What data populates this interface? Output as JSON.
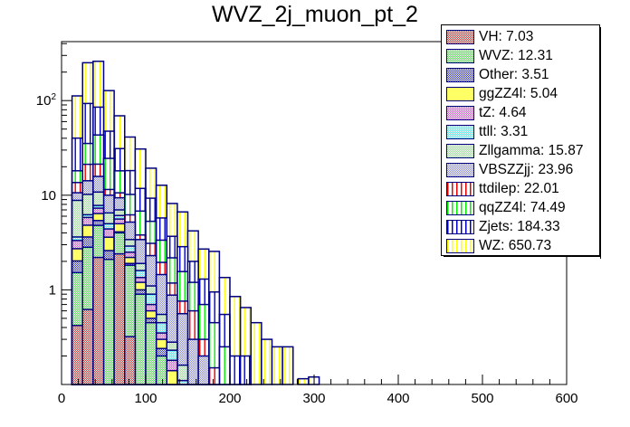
{
  "chart_data": {
    "type": "bar",
    "stacked": true,
    "title": "WVZ_2j_muon_pt_2",
    "xlabel": "",
    "ylabel": "",
    "xlim": [
      0,
      600
    ],
    "ylim": [
      0.1,
      420
    ],
    "yscale": "log",
    "grid": false,
    "legend_position": "top-right",
    "x_ticks": [
      "0",
      "100",
      "200",
      "300",
      "400",
      "500",
      "600"
    ],
    "x_tick_values": [
      0,
      100,
      200,
      300,
      400,
      500,
      600
    ],
    "y_ticks": [
      "1",
      "10",
      "10²"
    ],
    "y_tick_values": [
      1,
      10,
      100
    ],
    "bin_width": 12.5,
    "bin_edges_start": 12.5,
    "stack_order": [
      "VH",
      "WVZ",
      "Other",
      "ggZZ4l",
      "tZ",
      "ttll",
      "Zllgamma",
      "VBSZZjj",
      "ttdilep",
      "qqZZ4l",
      "Zjets",
      "WZ"
    ],
    "series": [
      {
        "name": "VH",
        "label": "VH: 7.03",
        "color": "#cc3333",
        "pattern": "check",
        "values": [
          0.42,
          0.62,
          2.2,
          0.1,
          2.4,
          0.32,
          0,
          0,
          0,
          0,
          0,
          0,
          0,
          0,
          0,
          0,
          0,
          0,
          0,
          0,
          0,
          0,
          0,
          0
        ]
      },
      {
        "name": "WVZ",
        "label": "WVZ: 12.31",
        "color": "#55dd55",
        "pattern": "check",
        "values": [
          1.1,
          2.2,
          2.6,
          2.0,
          1.6,
          1.5,
          0.9,
          0.45,
          0.2,
          0.08,
          0.05,
          0,
          0,
          0,
          0,
          0,
          0,
          0,
          0,
          0,
          0,
          0,
          0,
          0
        ]
      },
      {
        "name": "Other",
        "label": "Other: 3.51",
        "color": "#3333cc",
        "pattern": "check",
        "values": [
          0.5,
          0.8,
          0.6,
          0.5,
          0.1,
          0.08,
          0.1,
          0.05,
          0.04,
          0.02,
          0,
          0,
          0,
          0,
          0,
          0,
          0,
          0,
          0,
          0,
          0,
          0,
          0,
          0
        ]
      },
      {
        "name": "ggZZ4l",
        "label": "ggZZ4l: 5.04",
        "color": "#ffff66",
        "pattern": "solid",
        "values": [
          0.7,
          1.2,
          1.0,
          1.0,
          0.9,
          0.3,
          0.2,
          0.1,
          0.06,
          0.04,
          0,
          0,
          0,
          0,
          0,
          0,
          0,
          0,
          0,
          0,
          0,
          0,
          0,
          0
        ]
      },
      {
        "name": "tZ",
        "label": "tZ: 4.64",
        "color": "#dd55dd",
        "pattern": "check",
        "values": [
          0.6,
          1.0,
          0.9,
          0.8,
          0.6,
          0.3,
          0.15,
          0.1,
          0.05,
          0.04,
          0.03,
          0,
          0,
          0,
          0,
          0,
          0,
          0,
          0,
          0,
          0,
          0,
          0,
          0
        ]
      },
      {
        "name": "ttll",
        "label": "ttll: 3.31",
        "color": "#55eeee",
        "pattern": "check",
        "values": [
          0.3,
          0.4,
          0.5,
          0.6,
          0.5,
          0.4,
          0.25,
          0.2,
          0.1,
          0.05,
          0.03,
          0,
          0,
          0,
          0,
          0,
          0,
          0,
          0,
          0,
          0,
          0,
          0,
          0
        ]
      },
      {
        "name": "Zllgamma",
        "label": "Zllgamma: 15.87",
        "color": "#99dd99",
        "pattern": "check",
        "values": [
          5.2,
          4.0,
          3.0,
          1.5,
          0.9,
          0.5,
          0.3,
          0.2,
          0.1,
          0.05,
          0.05,
          0,
          0,
          0,
          0,
          0,
          0,
          0,
          0,
          0,
          0,
          0,
          0,
          0
        ]
      },
      {
        "name": "VBSZZjj",
        "label": "VBSZZjj: 23.96",
        "color": "#8888dd",
        "pattern": "check",
        "values": [
          1.8,
          4.0,
          5.0,
          3.5,
          2.4,
          1.8,
          1.5,
          1.2,
          0.9,
          0.6,
          0.4,
          0.3,
          0.2,
          0.1,
          0.05,
          0,
          0,
          0,
          0,
          0,
          0,
          0,
          0,
          0
        ]
      },
      {
        "name": "ttdilep",
        "label": "ttdilep: 22.01",
        "color": "#ee0000",
        "pattern": "vlines",
        "values": [
          3.0,
          7.0,
          5.5,
          1.5,
          1.2,
          1.0,
          0.4,
          0.8,
          0.5,
          0.3,
          0.2,
          0.3,
          0.1,
          0.05,
          0,
          0,
          0,
          0,
          0,
          0,
          0,
          0,
          0,
          0
        ]
      },
      {
        "name": "qqZZ4l",
        "label": "qqZZ4l: 74.49",
        "color": "#00ee00",
        "pattern": "vlines",
        "values": [
          4.5,
          14.0,
          22.0,
          13.0,
          7.5,
          4.0,
          3.0,
          2.2,
          1.4,
          1.0,
          0.8,
          0.6,
          0.4,
          0.3,
          0.2,
          0.1,
          0.05,
          0,
          0,
          0,
          0,
          0,
          0,
          0
        ]
      },
      {
        "name": "Zjets",
        "label": "Zjets: 184.33",
        "color": "#0000cc",
        "pattern": "vlines",
        "values": [
          22.0,
          58.0,
          42.0,
          23.0,
          13.0,
          8.0,
          5.0,
          4.0,
          2.4,
          1.5,
          1.3,
          0.8,
          0.6,
          0.5,
          0.3,
          0.1,
          0.15,
          0,
          0,
          0,
          0,
          0,
          0,
          0
        ]
      },
      {
        "name": "WZ",
        "label": "WZ: 650.73",
        "color": "#ffff00",
        "pattern": "vlines",
        "values": [
          72.0,
          158.0,
          175.0,
          80.0,
          38.0,
          23.0,
          19.0,
          10.0,
          7.0,
          4.5,
          3.8,
          2.2,
          1.4,
          1.6,
          0.8,
          0.65,
          0.45,
          0.45,
          0.3,
          0.25,
          0.25,
          0,
          0.0,
          0
        ]
      }
    ],
    "extra_bins": {
      "note": "small WZ contribution near 280-300",
      "x": [
        287.5,
        300
      ],
      "values": [
        0.115,
        0.12
      ]
    }
  }
}
